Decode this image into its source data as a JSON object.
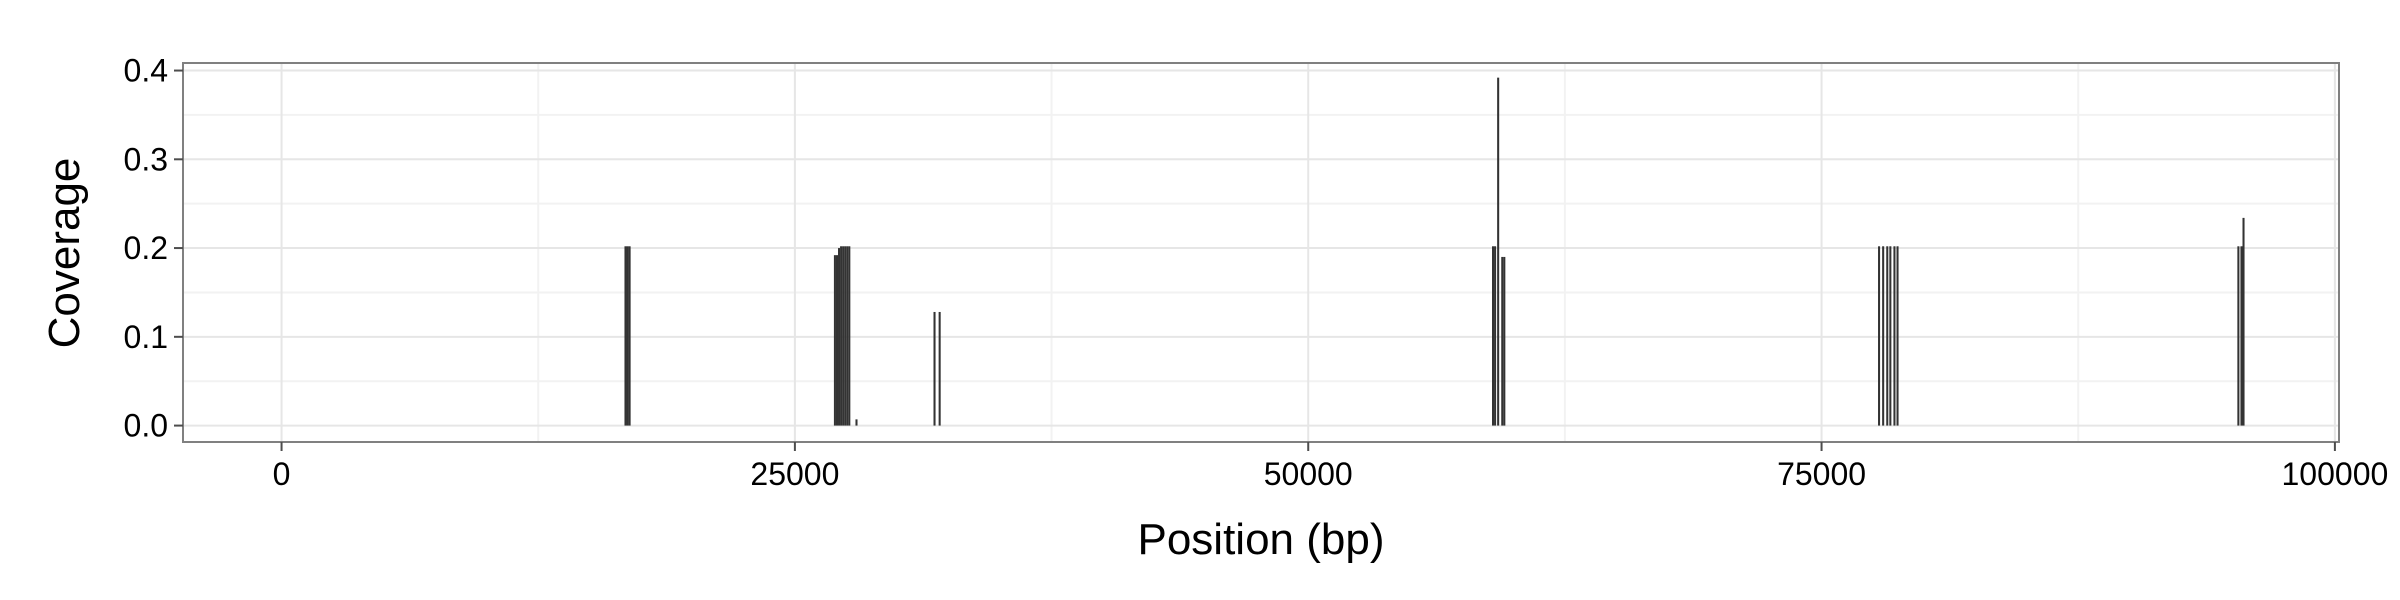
{
  "chart_data": {
    "type": "bar",
    "xlabel": "Position (bp)",
    "ylabel": "Coverage",
    "xlim": [
      -4800,
      100200
    ],
    "ylim": [
      -0.0185,
      0.4085
    ],
    "x_ticks": [
      0,
      25000,
      50000,
      75000,
      100000
    ],
    "x_tick_labels": [
      "0",
      "25000",
      "50000",
      "75000",
      "100000"
    ],
    "y_ticks": [
      0.0,
      0.1,
      0.2,
      0.3,
      0.4
    ],
    "y_tick_labels": [
      "0.0",
      "0.1",
      "0.2",
      "0.3",
      "0.4"
    ],
    "grid": true,
    "bar_width": 100,
    "bar_color": "#333333",
    "points": [
      {
        "x": 16750,
        "y": 0.202
      },
      {
        "x": 16850,
        "y": 0.202
      },
      {
        "x": 16950,
        "y": 0.202
      },
      {
        "x": 26950,
        "y": 0.192
      },
      {
        "x": 27050,
        "y": 0.192
      },
      {
        "x": 27150,
        "y": 0.2
      },
      {
        "x": 27250,
        "y": 0.202
      },
      {
        "x": 27350,
        "y": 0.202
      },
      {
        "x": 27450,
        "y": 0.202
      },
      {
        "x": 27550,
        "y": 0.202
      },
      {
        "x": 27650,
        "y": 0.202
      },
      {
        "x": 28000,
        "y": 0.007
      },
      {
        "x": 31800,
        "y": 0.128
      },
      {
        "x": 32050,
        "y": 0.128
      },
      {
        "x": 59000,
        "y": 0.202
      },
      {
        "x": 59100,
        "y": 0.202
      },
      {
        "x": 59250,
        "y": 0.392
      },
      {
        "x": 59450,
        "y": 0.19
      },
      {
        "x": 59550,
        "y": 0.19
      },
      {
        "x": 77800,
        "y": 0.202
      },
      {
        "x": 78000,
        "y": 0.202
      },
      {
        "x": 78200,
        "y": 0.202
      },
      {
        "x": 78350,
        "y": 0.202
      },
      {
        "x": 78550,
        "y": 0.202
      },
      {
        "x": 78700,
        "y": 0.202
      },
      {
        "x": 95300,
        "y": 0.202
      },
      {
        "x": 95450,
        "y": 0.202
      },
      {
        "x": 95550,
        "y": 0.234
      }
    ]
  },
  "colors": {
    "panel_border": "#808080",
    "grid_major": "#e6e6e6",
    "grid_minor": "#f2f2f2",
    "tick": "#4d4d4d"
  }
}
